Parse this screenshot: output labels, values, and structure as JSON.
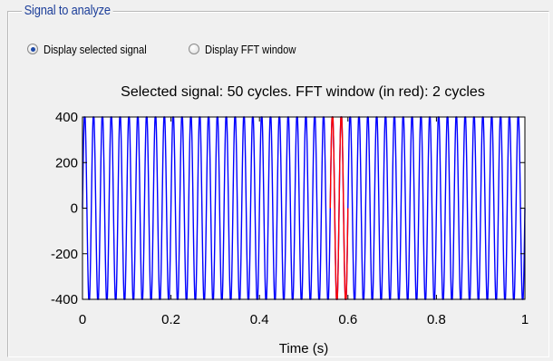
{
  "group": {
    "title": "Signal to analyze"
  },
  "options": [
    {
      "label": "Display selected signal",
      "checked": true
    },
    {
      "label": "Display FFT window",
      "checked": false
    }
  ],
  "chart_data": {
    "type": "line",
    "title": "Selected signal: 50 cycles. FFT window (in red): 2 cycles",
    "xlabel": "Time (s)",
    "ylabel": "",
    "xlim": [
      0,
      1
    ],
    "ylim": [
      -400,
      400
    ],
    "xticks": [
      "0",
      "0.2",
      "0.4",
      "0.6",
      "0.8",
      "1"
    ],
    "yticks": [
      "400",
      "200",
      "0",
      "-200",
      "-400"
    ],
    "grid": false,
    "series": [
      {
        "kind": "full_signal",
        "color": "#0000ff",
        "frequency_hz": 50,
        "amplitude": 420,
        "x_range": [
          0,
          1
        ]
      },
      {
        "kind": "fft_window",
        "color": "#ff0000",
        "frequency_hz": 50,
        "amplitude": 420,
        "x_range": [
          0.56,
          0.6
        ]
      }
    ]
  }
}
